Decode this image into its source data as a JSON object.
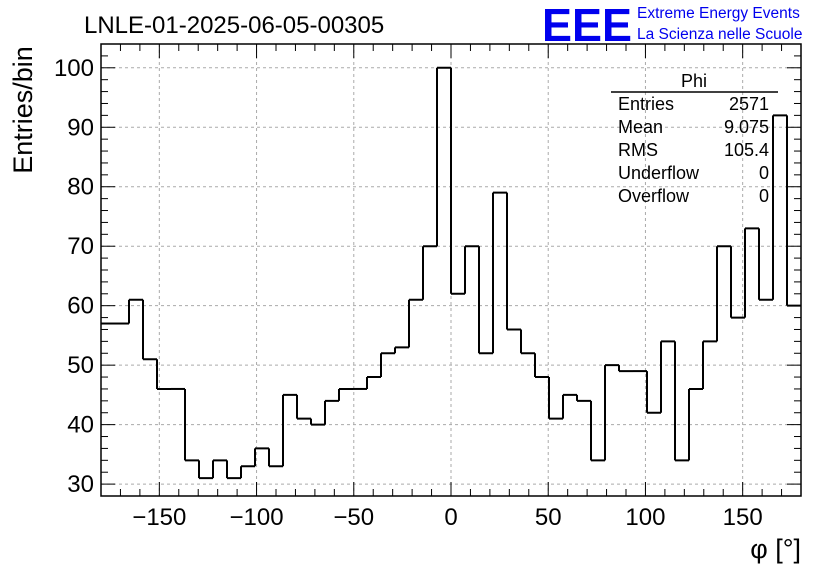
{
  "header": {
    "title": "LNLE-01-2025-06-05-00305"
  },
  "logo": {
    "mark": "EEE",
    "line1": "Extreme Energy Events",
    "line2": "La Scienza nelle Scuole",
    "color": "#0000ee"
  },
  "stats_box": {
    "title": "Phi",
    "rows": [
      {
        "label": "Entries",
        "value": "2571"
      },
      {
        "label": "Mean",
        "value": "9.075"
      },
      {
        "label": "RMS",
        "value": "105.4"
      },
      {
        "label": "Underflow",
        "value": "0"
      },
      {
        "label": "Overflow",
        "value": "0"
      }
    ]
  },
  "chart_data": {
    "type": "bar",
    "style": "step-histogram",
    "title": "LNLE-01-2025-06-05-00305",
    "xlabel": "φ [°]",
    "ylabel": "Entries/bin",
    "xlim": [
      -180,
      180
    ],
    "ylim": [
      28,
      104
    ],
    "grid": true,
    "bin_width": 7.2,
    "bin_start": -180,
    "x_ticks": [
      -150,
      -100,
      -50,
      0,
      50,
      100,
      150
    ],
    "x_tick_labels": [
      "−150",
      "−100",
      "−50",
      "0",
      "50",
      "100",
      "150"
    ],
    "y_ticks": [
      30,
      40,
      50,
      60,
      70,
      80,
      90,
      100
    ],
    "y_tick_labels": [
      "30",
      "40",
      "50",
      "60",
      "70",
      "80",
      "90",
      "100"
    ],
    "values": [
      57,
      57,
      61,
      51,
      46,
      46,
      34,
      31,
      34,
      31,
      33,
      36,
      33,
      45,
      41,
      40,
      44,
      46,
      46,
      48,
      52,
      53,
      61,
      70,
      100,
      62,
      70,
      52,
      79,
      56,
      52,
      48,
      41,
      45,
      44,
      34,
      50,
      49,
      49,
      42,
      54,
      34,
      46,
      54,
      70,
      58,
      73,
      61,
      92,
      60
    ]
  }
}
